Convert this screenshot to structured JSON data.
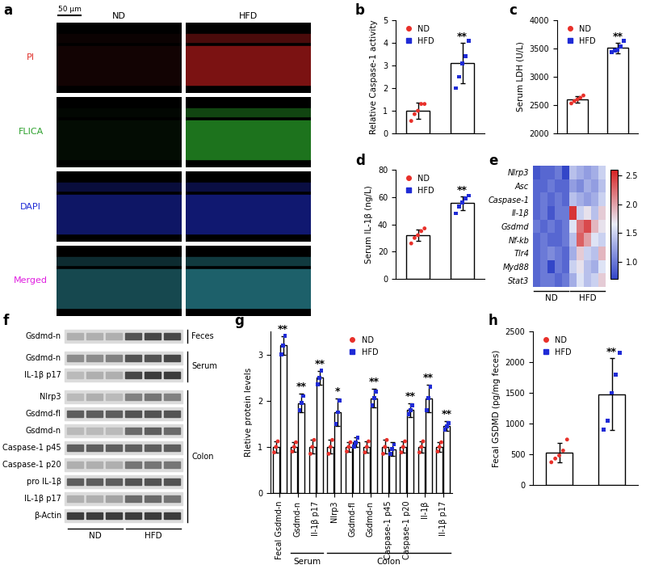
{
  "images": {
    "panel": "a",
    "scale_bar": "50 μm",
    "columns": [
      "ND",
      "HFD"
    ],
    "rows": [
      {
        "label": "PI",
        "label_color": "#e0302a",
        "image_color": "#e02020",
        "signal": [
          0.08,
          0.55
        ]
      },
      {
        "label": "FLICA",
        "label_color": "#2ca02c",
        "image_color": "#30c030",
        "signal": [
          0.06,
          0.6
        ]
      },
      {
        "label": "DAPI",
        "label_color": "#1f2bd6",
        "image_color": "#2030e0",
        "signal": [
          0.45,
          0.5
        ]
      },
      {
        "label": "Merged",
        "label_color": "#e020e0",
        "image_color": "#30a0b0",
        "signal": [
          0.45,
          0.6
        ]
      }
    ]
  },
  "blot": {
    "panel": "f",
    "rows": [
      {
        "label": "Gsdmd-n",
        "bands": [
          0.35,
          0.35,
          0.35,
          0.75,
          0.8,
          0.8
        ]
      },
      {
        "label": "Gsdmd-n",
        "bands": [
          0.5,
          0.5,
          0.55,
          0.75,
          0.75,
          0.8
        ]
      },
      {
        "label": "IL-1β p17",
        "bands": [
          0.3,
          0.35,
          0.35,
          0.8,
          0.85,
          0.85
        ]
      },
      {
        "label": "Nlrp3",
        "bands": [
          0.3,
          0.35,
          0.3,
          0.55,
          0.6,
          0.55
        ]
      },
      {
        "label": "Gsdmd-fl",
        "bands": [
          0.7,
          0.7,
          0.7,
          0.75,
          0.75,
          0.75
        ]
      },
      {
        "label": "Gsdmd-n",
        "bands": [
          0.3,
          0.3,
          0.3,
          0.65,
          0.7,
          0.65
        ]
      },
      {
        "label": "Caspase-1 p45",
        "bands": [
          0.7,
          0.7,
          0.7,
          0.7,
          0.7,
          0.7
        ]
      },
      {
        "label": "Caspase-1 p20",
        "bands": [
          0.35,
          0.35,
          0.35,
          0.6,
          0.6,
          0.6
        ]
      },
      {
        "label": "pro IL-1β",
        "bands": [
          0.7,
          0.7,
          0.7,
          0.75,
          0.75,
          0.75
        ]
      },
      {
        "label": "IL-1β p17",
        "bands": [
          0.35,
          0.35,
          0.4,
          0.65,
          0.65,
          0.6
        ]
      },
      {
        "label": "β-Actin",
        "bands": [
          0.85,
          0.85,
          0.85,
          0.85,
          0.85,
          0.85
        ]
      }
    ],
    "groups": [
      {
        "label": "Feces",
        "start": 0,
        "end": 0
      },
      {
        "label": "Serum",
        "start": 1,
        "end": 2
      },
      {
        "label": "Colon",
        "start": 3,
        "end": 10
      }
    ],
    "lanes": [
      {
        "label": "ND",
        "start": 0,
        "end": 2
      },
      {
        "label": "HFD",
        "start": 3,
        "end": 5
      }
    ]
  },
  "chart_data": [
    {
      "panel": "b",
      "type": "bar",
      "ylabel": "Relative Caspase-1 activity",
      "categories": [
        null,
        null
      ],
      "ylim": [
        0,
        5
      ],
      "yticks": [
        0,
        1,
        2,
        3,
        4,
        5
      ],
      "legend": "upper left",
      "tick_labels": "y",
      "series": [
        {
          "name": "ND",
          "color": "#e8302a",
          "marker": "circle",
          "values": [
            1.0,
            null
          ],
          "errors": [
            0.35,
            null
          ],
          "points": [
            [
              0.55,
              0.85,
              1.0,
              1.3,
              1.3
            ],
            null
          ]
        },
        {
          "name": "HFD",
          "color": "#1f2bd6",
          "marker": "square",
          "values": [
            null,
            3.1
          ],
          "errors": [
            null,
            0.9
          ],
          "points": [
            null,
            [
              2.0,
              2.5,
              3.1,
              3.4,
              4.1
            ]
          ],
          "significance": [
            null,
            "**"
          ]
        }
      ]
    },
    {
      "panel": "c",
      "type": "bar",
      "ylabel": "Serum LDH (U/L)",
      "categories": [
        null,
        null
      ],
      "ylim": [
        2000,
        4000
      ],
      "yticks": [
        2000,
        2500,
        3000,
        3500,
        4000
      ],
      "legend": "upper left",
      "tick_labels": "y",
      "series": [
        {
          "name": "ND",
          "color": "#e8302a",
          "marker": "circle",
          "values": [
            2600,
            null
          ],
          "errors": [
            60,
            null
          ],
          "points": [
            [
              2530,
              2570,
              2600,
              2630,
              2670
            ],
            null
          ]
        },
        {
          "name": "HFD",
          "color": "#1f2bd6",
          "marker": "square",
          "values": [
            null,
            3510
          ],
          "errors": [
            null,
            90
          ],
          "points": [
            null,
            [
              3440,
              3460,
              3480,
              3530,
              3640
            ]
          ],
          "significance": [
            null,
            "**"
          ]
        }
      ]
    },
    {
      "panel": "d",
      "type": "bar",
      "ylabel": "Serum IL-1β (ng/L)",
      "categories": [
        null,
        null
      ],
      "ylim": [
        0,
        80
      ],
      "yticks": [
        0,
        20,
        40,
        60,
        80
      ],
      "legend": "upper left",
      "tick_labels": "y",
      "series": [
        {
          "name": "ND",
          "color": "#e8302a",
          "marker": "circle",
          "values": [
            32,
            null
          ],
          "errors": [
            4,
            null
          ],
          "points": [
            [
              26,
              30,
              32,
              35,
              37
            ],
            null
          ]
        },
        {
          "name": "HFD",
          "color": "#1f2bd6",
          "marker": "square",
          "values": [
            null,
            55.5
          ],
          "errors": [
            null,
            5
          ],
          "points": [
            null,
            [
              48,
              53,
              56,
              59,
              61
            ]
          ],
          "significance": [
            null,
            "**"
          ]
        }
      ]
    },
    {
      "panel": "e",
      "type": "heatmap",
      "rows": [
        "Nlrp3",
        "Asc",
        "Caspase-1",
        "Il-1β",
        "Gsdmd",
        "Nf-kb",
        "Tlr4",
        "Myd88",
        "Stat3"
      ],
      "cells": [
        [
          0.8,
          0.9,
          0.9,
          1.0,
          0.7,
          1.4,
          1.3,
          1.2,
          1.3,
          1.5
        ],
        [
          0.9,
          0.9,
          1.0,
          0.9,
          0.9,
          1.2,
          1.1,
          1.3,
          1.2,
          1.4
        ],
        [
          0.9,
          1.0,
          0.9,
          1.0,
          0.9,
          1.4,
          1.3,
          1.2,
          1.3,
          1.5
        ],
        [
          0.9,
          1.0,
          0.8,
          1.0,
          1.0,
          2.5,
          1.5,
          1.7,
          1.4,
          1.8
        ],
        [
          1.0,
          0.9,
          1.0,
          0.9,
          1.0,
          1.6,
          2.2,
          2.4,
          1.9,
          1.7
        ],
        [
          0.9,
          1.0,
          0.9,
          0.9,
          1.0,
          1.4,
          2.3,
          2.0,
          1.6,
          1.5
        ],
        [
          0.9,
          1.0,
          1.1,
          1.0,
          0.9,
          1.3,
          1.8,
          1.5,
          1.4,
          1.9
        ],
        [
          0.9,
          1.0,
          0.7,
          1.0,
          0.9,
          1.5,
          1.7,
          1.4,
          1.3,
          1.6
        ],
        [
          0.9,
          1.0,
          1.0,
          0.9,
          1.0,
          1.3,
          1.6,
          1.4,
          1.5,
          1.8
        ]
      ],
      "column_groups": [
        {
          "label": "ND",
          "start": 0,
          "end": 4
        },
        {
          "label": "HFD",
          "start": 5,
          "end": 9
        }
      ],
      "colorbar_range": [
        0.7,
        2.6
      ],
      "colorbar_ticks": [
        {
          "value": 1.0,
          "label": "1.0"
        },
        {
          "value": 1.5,
          "label": "1.5"
        },
        {
          "value": 2.0,
          "label": "2.0"
        },
        {
          "value": 2.5,
          "label": "2.5"
        }
      ]
    },
    {
      "panel": "g",
      "type": "bar",
      "ylabel": "Rletive protein levels",
      "categories": [
        "Fecal Gsdmd-n",
        "Gsdmd-n",
        "Il-1β p17",
        "Nlrp3",
        "Gsdmd-fl",
        "Gsdmd-n",
        "Caspase-1 p45",
        "Caspase-1 p20",
        "Il-1β",
        "Il-1β p17"
      ],
      "groups": [
        {
          "label": "Serum",
          "start": 1,
          "end": 2
        },
        {
          "label": "Colon",
          "start": 3,
          "end": 9
        }
      ],
      "ylim": [
        0,
        3.5
      ],
      "yticks": [
        0,
        1,
        2,
        3
      ],
      "legend": "upper center",
      "series": [
        {
          "name": "ND",
          "color": "#e8302a",
          "marker": "circle",
          "values": [
            1.0,
            1.0,
            1.0,
            1.0,
            1.0,
            1.0,
            1.0,
            1.0,
            1.0,
            1.0
          ],
          "errors": [
            0.12,
            0.1,
            0.15,
            0.15,
            0.1,
            0.12,
            0.15,
            0.12,
            0.12,
            0.1
          ],
          "points": [
            [
              0.88,
              1.0,
              1.12
            ],
            [
              0.9,
              1.0,
              1.1
            ],
            [
              0.85,
              1.0,
              1.15
            ],
            [
              0.85,
              1.0,
              1.15
            ],
            [
              0.9,
              1.0,
              1.1
            ],
            [
              0.88,
              1.0,
              1.12
            ],
            [
              0.85,
              1.0,
              1.15
            ],
            [
              0.88,
              1.0,
              1.12
            ],
            [
              0.88,
              1.0,
              1.12
            ],
            [
              0.9,
              1.0,
              1.1
            ]
          ]
        },
        {
          "name": "HFD",
          "color": "#1f2bd6",
          "marker": "square",
          "values": [
            3.2,
            1.95,
            2.5,
            1.75,
            1.1,
            2.05,
            0.95,
            1.8,
            2.05,
            1.45
          ],
          "errors": [
            0.2,
            0.2,
            0.15,
            0.3,
            0.1,
            0.2,
            0.15,
            0.15,
            0.3,
            0.1
          ],
          "points": [
            [
              3.0,
              3.2,
              3.4
            ],
            [
              1.8,
              1.95,
              2.1
            ],
            [
              2.35,
              2.5,
              2.65
            ],
            [
              1.5,
              1.75,
              2.0
            ],
            [
              1.0,
              1.1,
              1.2
            ],
            [
              1.9,
              2.05,
              2.2
            ],
            [
              0.85,
              0.95,
              1.05
            ],
            [
              1.7,
              1.8,
              1.9
            ],
            [
              1.8,
              2.05,
              2.3
            ],
            [
              1.38,
              1.45,
              1.52
            ]
          ],
          "significance": [
            "**",
            "**",
            "**",
            "*",
            null,
            "**",
            null,
            "**",
            "**",
            "**"
          ]
        }
      ]
    },
    {
      "panel": "h",
      "type": "bar",
      "ylabel": "Fecal GSDMD (pg/mg feces)",
      "categories": [
        null,
        null
      ],
      "ylim": [
        0,
        2500
      ],
      "yticks": [
        0,
        500,
        1000,
        1500,
        2000,
        2500
      ],
      "legend": "upper left",
      "tick_labels": "y",
      "series": [
        {
          "name": "ND",
          "color": "#e8302a",
          "marker": "circle",
          "values": [
            530,
            null
          ],
          "errors": [
            160,
            null
          ],
          "points": [
            [
              370,
              430,
              480,
              560,
              740
            ],
            null
          ]
        },
        {
          "name": "HFD",
          "color": "#1f2bd6",
          "marker": "square",
          "values": [
            null,
            1480
          ],
          "errors": [
            null,
            580
          ],
          "points": [
            null,
            [
              900,
              1050,
              1500,
              1800,
              2150
            ]
          ],
          "significance": [
            null,
            "**"
          ]
        }
      ]
    }
  ]
}
